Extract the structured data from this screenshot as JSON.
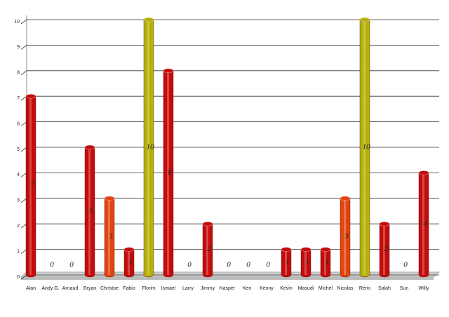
{
  "chart_data": {
    "type": "bar",
    "categories": [
      "Alan",
      "Andy G.",
      "Arnaud",
      "Bryan",
      "Christoe",
      "Fabio",
      "Florim",
      "Ismael",
      "Larry",
      "Jimmy",
      "Kasper",
      "Ken",
      "Kenny",
      "Kevin",
      "Masudi",
      "Michel",
      "Nicolas",
      "Rémi",
      "Salah",
      "Sun",
      "Willy"
    ],
    "values": [
      7,
      0,
      0,
      5,
      3,
      1,
      10,
      8,
      0,
      2,
      0,
      0,
      0,
      1,
      1,
      1,
      3,
      10,
      2,
      0,
      4
    ],
    "colors": [
      "#c40c0c",
      "#c40c0c",
      "#c40c0c",
      "#c40c0c",
      "#e2440e",
      "#c40c0c",
      "#b4b20a",
      "#c40c0c",
      "#c40c0c",
      "#c40c0c",
      "#c40c0c",
      "#c40c0c",
      "#c40c0c",
      "#c40c0c",
      "#c40c0c",
      "#c40c0c",
      "#e2440e",
      "#b4b20a",
      "#c40c0c",
      "#c40c0c",
      "#c40c0c"
    ],
    "ylim": [
      0,
      10
    ],
    "yticks": [
      0,
      1,
      2,
      3,
      4,
      5,
      6,
      7,
      8,
      9,
      10
    ],
    "grid": true
  }
}
